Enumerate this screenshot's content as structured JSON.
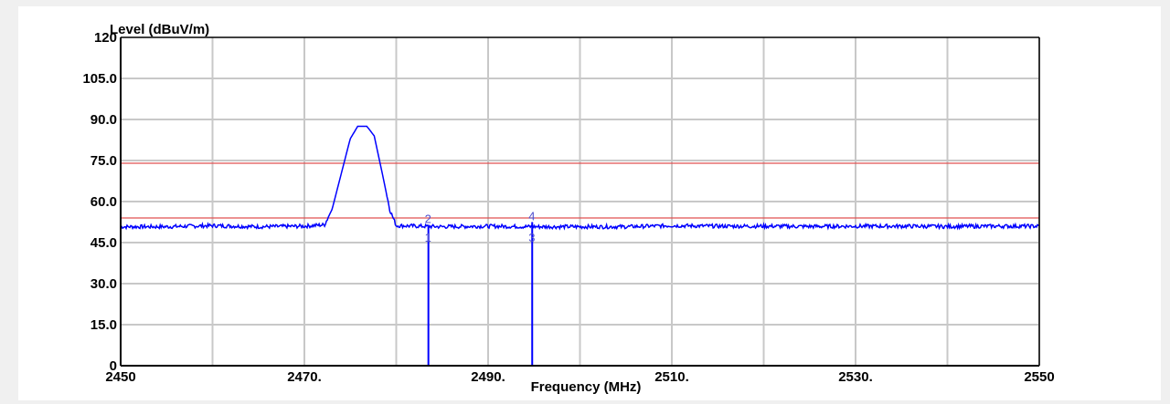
{
  "chart_data": {
    "type": "line",
    "title": "",
    "ylabel": "Level (dBuV/m)",
    "xlabel": "Frequency (MHz)",
    "xlim": [
      2450,
      2550
    ],
    "ylim": [
      0,
      120
    ],
    "x_ticks": [
      2450,
      2470,
      2490,
      2510,
      2530,
      2550
    ],
    "x_tick_labels": [
      "2450",
      "2470.",
      "2490.",
      "2510.",
      "2530.",
      "2550"
    ],
    "x_grid": [
      2450,
      2460,
      2470,
      2480,
      2490,
      2500,
      2510,
      2520,
      2530,
      2540,
      2550
    ],
    "y_ticks": [
      0,
      15,
      30,
      45,
      60,
      75,
      90,
      105,
      120
    ],
    "y_tick_labels": [
      "0",
      "15.0",
      "30.0",
      "45.0",
      "60.0",
      "75.0",
      "90.0",
      "105.0",
      "120"
    ],
    "y_grid": [
      15,
      30,
      45,
      60,
      75,
      90,
      105
    ],
    "grid": true,
    "limit_lines": [
      {
        "value": 74,
        "color": "#e05050"
      },
      {
        "value": 54,
        "color": "#e05050"
      }
    ],
    "series": [
      {
        "color": "#0000ff",
        "x": [
          2450,
          2455,
          2460,
          2465,
          2470,
          2472.2,
          2473,
          2474,
          2475,
          2475.8,
          2476.8,
          2477.6,
          2478.5,
          2479.3,
          2480,
          2485,
          2490,
          2495,
          2500,
          2505,
          2510,
          2515,
          2520,
          2525,
          2530,
          2535,
          2540,
          2545,
          2550
        ],
        "y": [
          50.8,
          50.8,
          51.2,
          50.8,
          51.0,
          51.5,
          57.0,
          70.0,
          83.0,
          87.5,
          87.5,
          84.0,
          70.0,
          57.0,
          51.2,
          50.8,
          51.0,
          50.8,
          50.8,
          50.8,
          51.2,
          51.0,
          51.0,
          50.9,
          51.0,
          51.0,
          50.9,
          51.0,
          51.0
        ]
      }
    ],
    "markers": [
      {
        "label": "1",
        "x": 2483.5,
        "y": 0
      },
      {
        "label": "2",
        "x": 2483.5,
        "y": 51.5
      },
      {
        "label": "3",
        "x": 2494.8,
        "y": 0
      },
      {
        "label": "4",
        "x": 2494.8,
        "y": 52.5
      }
    ],
    "colors": {
      "axis": "#000000",
      "grid": "#c8c8c8",
      "trace": "#0000ff",
      "limit": "#e05050",
      "marker_text": "#4f4fcf",
      "background": "#ffffff",
      "page": "#f0f0f0"
    }
  }
}
